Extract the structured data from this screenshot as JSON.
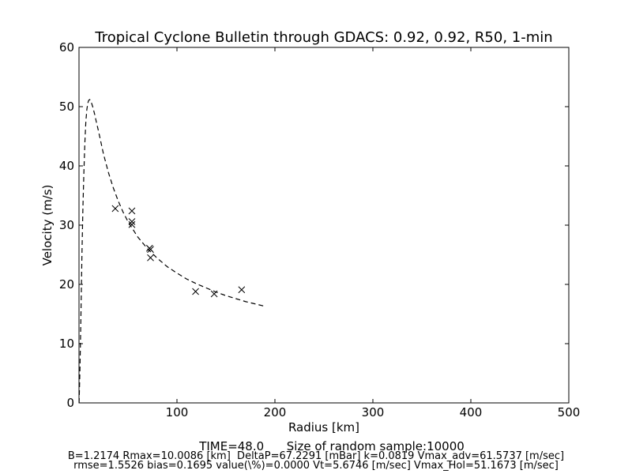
{
  "chart_data": {
    "type": "line",
    "title": "Tropical Cyclone Bulletin through GDACS: 0.92, 0.92, R50, 1-min",
    "xlabel": "Radius [km]",
    "ylabel": "Velocity (m/s)",
    "xlim": [
      0,
      500
    ],
    "ylim": [
      0,
      60
    ],
    "xticks": [
      100,
      200,
      300,
      400,
      500
    ],
    "yticks": [
      0,
      10,
      20,
      30,
      40,
      50,
      60
    ],
    "grid": false,
    "legend": "none",
    "series": [
      {
        "style": "dashed-line",
        "color": "#000000",
        "points": [
          [
            0.1,
            0
          ],
          [
            1,
            6
          ],
          [
            2,
            15
          ],
          [
            3,
            25
          ],
          [
            4,
            33
          ],
          [
            5,
            39
          ],
          [
            6,
            44
          ],
          [
            7,
            47.5
          ],
          [
            8,
            49.5
          ],
          [
            9,
            50.6
          ],
          [
            10,
            51.1
          ],
          [
            11,
            51.2
          ],
          [
            12,
            51.0
          ],
          [
            14,
            50.0
          ],
          [
            16,
            48.7
          ],
          [
            18,
            47.2
          ],
          [
            20,
            45.8
          ],
          [
            25,
            42.0
          ],
          [
            30,
            38.9
          ],
          [
            35,
            36.3
          ],
          [
            40,
            34.1
          ],
          [
            45,
            32.2
          ],
          [
            50,
            30.6
          ],
          [
            60,
            28.0
          ],
          [
            70,
            26.0
          ],
          [
            80,
            24.4
          ],
          [
            90,
            23.0
          ],
          [
            100,
            21.9
          ],
          [
            110,
            20.9
          ],
          [
            120,
            20.1
          ],
          [
            130,
            19.4
          ],
          [
            140,
            18.7
          ],
          [
            150,
            18.1
          ],
          [
            160,
            17.6
          ],
          [
            170,
            17.1
          ],
          [
            180,
            16.7
          ],
          [
            190,
            16.3
          ]
        ]
      },
      {
        "style": "x-markers",
        "color": "#000000",
        "points": [
          [
            37,
            32.8
          ],
          [
            54,
            32.4
          ],
          [
            54,
            30.6
          ],
          [
            54,
            30.1
          ],
          [
            72,
            26.1
          ],
          [
            73,
            25.9
          ],
          [
            73,
            24.5
          ],
          [
            119,
            18.8
          ],
          [
            138,
            18.4
          ],
          [
            166,
            19.1
          ]
        ]
      }
    ]
  },
  "footer": {
    "line1": "TIME=48.0      Size of random sample:10000",
    "line2": "B=1.2174 Rmax=10.0086 [km]  DeltaP=67.2291 [mBar] k=0.0819 Vmax_adv=61.5737 [m/sec]",
    "line3": "rmse=1.5526 bias=0.1695 value(\\%)=0.0000 Vt=5.6746 [m/sec] Vmax_Hol=51.1673 [m/sec]"
  }
}
